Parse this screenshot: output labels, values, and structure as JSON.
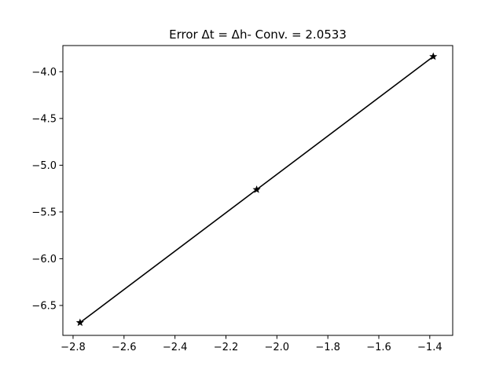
{
  "chart_data": {
    "type": "line",
    "title": "Error Δt = Δh- Conv. = 2.0533",
    "xlabel": "",
    "ylabel": "",
    "xlim": [
      -2.84,
      -1.31
    ],
    "ylim": [
      -6.82,
      -3.72
    ],
    "xticks": [
      -2.8,
      -2.6,
      -2.4,
      -2.2,
      -2.0,
      -1.8,
      -1.6,
      -1.4
    ],
    "xtick_labels": [
      "−2.8",
      "−2.6",
      "−2.4",
      "−2.2",
      "−2.0",
      "−1.8",
      "−1.6",
      "−1.4"
    ],
    "yticks": [
      -6.5,
      -6.0,
      -5.5,
      -5.0,
      -4.5,
      -4.0
    ],
    "ytick_labels": [
      "−6.5",
      "−6.0",
      "−5.5",
      "−5.0",
      "−4.5",
      "−4.0"
    ],
    "grid": false,
    "series": [
      {
        "color": "#000000",
        "marker": "star",
        "x": [
          -2.7726,
          -2.0794,
          -1.3863
        ],
        "y": [
          -6.6838,
          -5.2607,
          -3.8376
        ]
      }
    ]
  }
}
